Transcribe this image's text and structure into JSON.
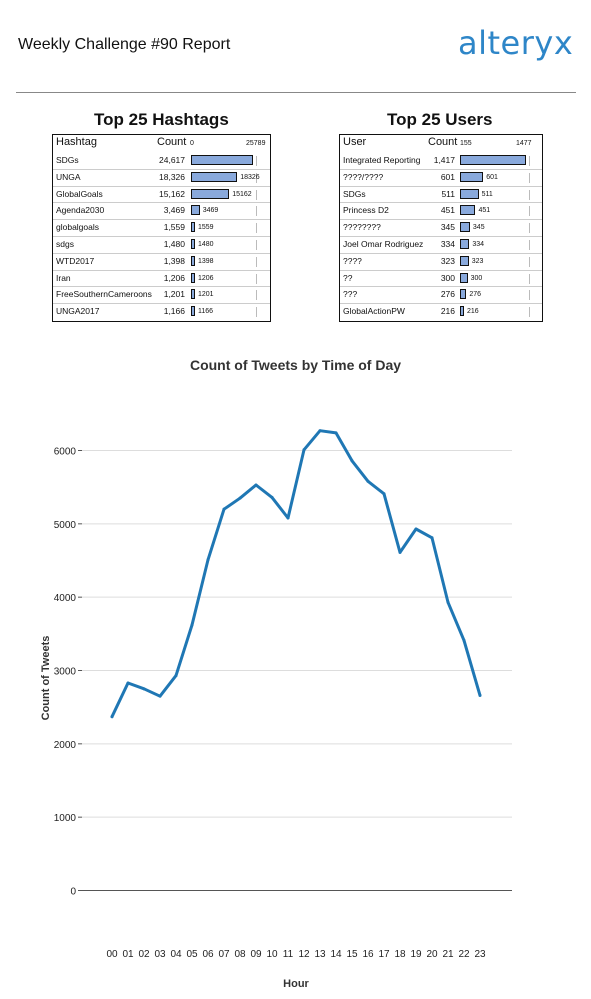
{
  "header": {
    "title": "Weekly Challenge #90 Report",
    "logo_text": "alteryx"
  },
  "hashtags": {
    "title": "Top 25 Hashtags",
    "col_label": "Hashtag",
    "col_count": "Count",
    "axis_min": "0",
    "axis_max": "25789",
    "rows": [
      {
        "label": "SDGs",
        "count": "24,617",
        "value": 24617,
        "bar_label": ""
      },
      {
        "label": "UNGA",
        "count": "18,326",
        "value": 18326,
        "bar_label": "18326"
      },
      {
        "label": "GlobalGoals",
        "count": "15,162",
        "value": 15162,
        "bar_label": "15162"
      },
      {
        "label": "Agenda2030",
        "count": "3,469",
        "value": 3469,
        "bar_label": "3469"
      },
      {
        "label": "globalgoals",
        "count": "1,559",
        "value": 1559,
        "bar_label": "1559"
      },
      {
        "label": "sdgs",
        "count": "1,480",
        "value": 1480,
        "bar_label": "1480"
      },
      {
        "label": "WTD2017",
        "count": "1,398",
        "value": 1398,
        "bar_label": "1398"
      },
      {
        "label": "Iran",
        "count": "1,206",
        "value": 1206,
        "bar_label": "1206"
      },
      {
        "label": "FreeSouthernCameroons",
        "count": "1,201",
        "value": 1201,
        "bar_label": "1201"
      },
      {
        "label": "UNGA2017",
        "count": "1,166",
        "value": 1166,
        "bar_label": "1166"
      }
    ]
  },
  "users": {
    "title": "Top 25 Users",
    "col_label": "User",
    "col_count": "Count",
    "axis_min": "155",
    "axis_max": "1477",
    "rows": [
      {
        "label": "Integrated Reporting",
        "count": "1,417",
        "value": 1417,
        "bar_label": ""
      },
      {
        "label": "????/????",
        "count": "601",
        "value": 601,
        "bar_label": "601"
      },
      {
        "label": "SDGs",
        "count": "511",
        "value": 511,
        "bar_label": "511"
      },
      {
        "label": "Princess D2",
        "count": "451",
        "value": 451,
        "bar_label": "451"
      },
      {
        "label": "????????",
        "count": "345",
        "value": 345,
        "bar_label": "345"
      },
      {
        "label": "Joel Omar Rodriguez",
        "count": "334",
        "value": 334,
        "bar_label": "334"
      },
      {
        "label": "????",
        "count": "323",
        "value": 323,
        "bar_label": "323"
      },
      {
        "label": "??",
        "count": "300",
        "value": 300,
        "bar_label": "300"
      },
      {
        "label": "???",
        "count": "276",
        "value": 276,
        "bar_label": "276"
      },
      {
        "label": "GlobalActionPW",
        "count": "216",
        "value": 216,
        "bar_label": "216"
      }
    ]
  },
  "chart_data": {
    "type": "line",
    "title": "Count of Tweets by Time of Day",
    "xlabel": "Hour",
    "ylabel": "Count of Tweets",
    "x": [
      "00",
      "01",
      "02",
      "03",
      "04",
      "05",
      "06",
      "07",
      "08",
      "09",
      "10",
      "11",
      "12",
      "13",
      "14",
      "15",
      "16",
      "17",
      "18",
      "19",
      "20",
      "21",
      "22",
      "23"
    ],
    "series": [
      {
        "values": [
          2370,
          2830,
          2750,
          2650,
          2930,
          3620,
          4510,
          5200,
          5350,
          5530,
          5360,
          5080,
          6010,
          6270,
          6240,
          5860,
          5580,
          5410,
          4610,
          4930,
          4810,
          3930,
          3410,
          2660
        ]
      }
    ],
    "ylim": [
      0,
      6500
    ],
    "yticks": [
      0,
      1000,
      2000,
      3000,
      4000,
      5000,
      6000
    ],
    "grid": true,
    "color": "#1f77b4"
  }
}
